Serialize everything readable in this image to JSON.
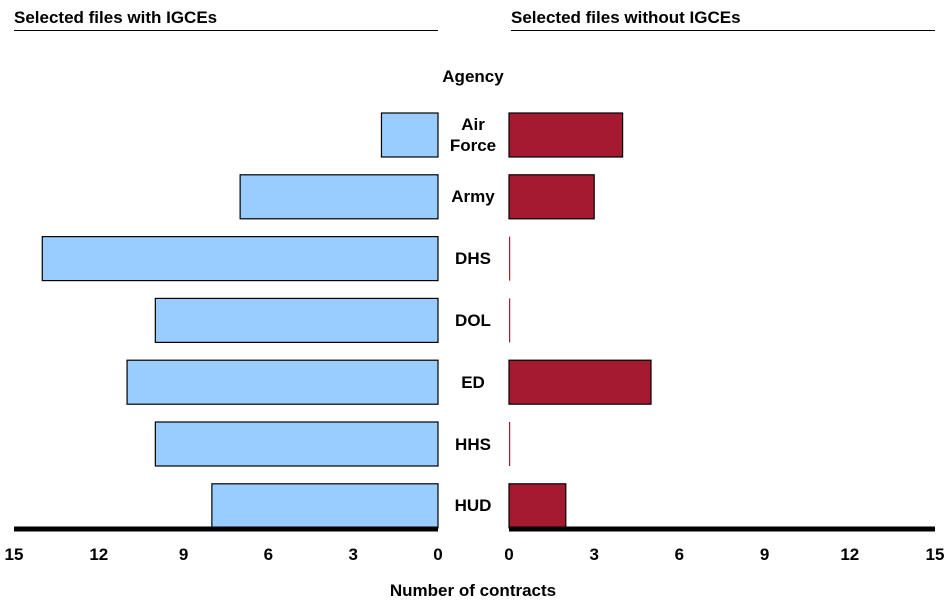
{
  "chart_data": {
    "type": "bar",
    "orientation": "horizontal",
    "layout": "diverging two-panel",
    "xlabel": "Number of contracts",
    "category_header": "Agency",
    "categories": [
      "Air Force",
      "Army",
      "DHS",
      "DOL",
      "ED",
      "HHS",
      "HUD"
    ],
    "category_labels": [
      [
        "Air",
        "Force"
      ],
      [
        "Army"
      ],
      [
        "DHS"
      ],
      [
        "DOL"
      ],
      [
        "ED"
      ],
      [
        "HHS"
      ],
      [
        "HUD"
      ]
    ],
    "series": [
      {
        "name": "Selected files with IGCEs",
        "values": [
          2,
          7,
          14,
          10,
          11,
          10,
          8
        ],
        "color": "#99ccff"
      },
      {
        "name": "Selected files without IGCEs",
        "values": [
          4,
          3,
          0,
          0,
          5,
          0,
          2
        ],
        "color": "#a51931"
      }
    ],
    "xlim": [
      0,
      15
    ],
    "left_ticks": [
      "15",
      "12",
      "9",
      "6",
      "3",
      "0"
    ],
    "right_ticks": [
      "0",
      "3",
      "6",
      "9",
      "12",
      "15"
    ],
    "grid": false,
    "legend": "none"
  }
}
